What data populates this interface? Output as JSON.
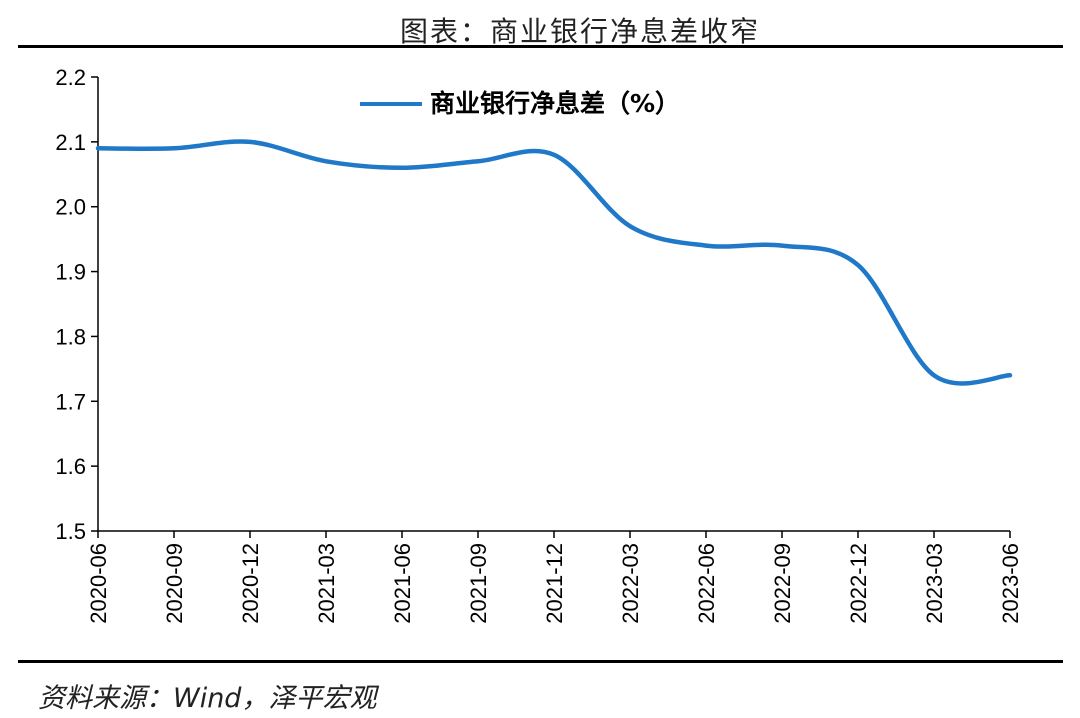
{
  "figure": {
    "title": "图表：商业银行净息差收窄",
    "source": "资料来源：Wind，泽平宏观"
  },
  "chart_data": {
    "type": "line",
    "title": "图表：商业银行净息差收窄",
    "xlabel": "",
    "ylabel": "",
    "x": [
      "2020-06",
      "2020-09",
      "2020-12",
      "2021-03",
      "2021-06",
      "2021-09",
      "2021-12",
      "2022-03",
      "2022-06",
      "2022-09",
      "2022-12",
      "2023-03",
      "2023-06"
    ],
    "y_ticks": [
      "1.5",
      "1.6",
      "1.7",
      "1.8",
      "1.9",
      "2.0",
      "2.1",
      "2.2"
    ],
    "ylim": [
      1.5,
      2.2
    ],
    "series": [
      {
        "name": "商业银行净息差（%）",
        "color": "#1f78c8",
        "values": [
          2.09,
          2.09,
          2.1,
          2.07,
          2.06,
          2.07,
          2.08,
          1.97,
          1.94,
          1.94,
          1.91,
          1.74,
          1.74
        ]
      }
    ],
    "legend_position": "top-center",
    "grid": false
  }
}
